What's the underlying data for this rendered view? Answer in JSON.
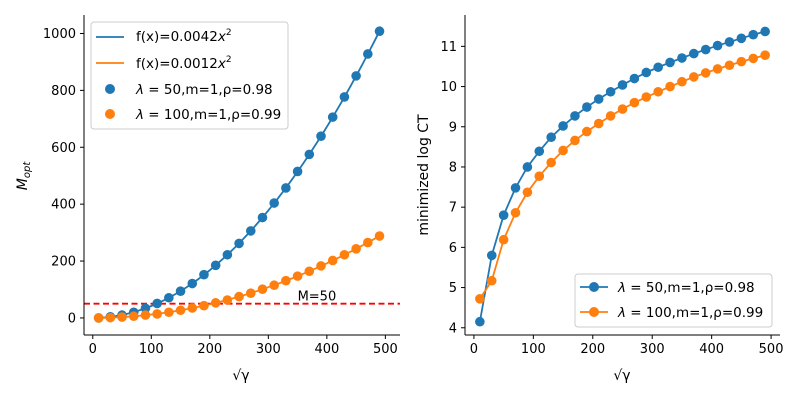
{
  "chart_data": [
    {
      "type": "scatter",
      "xlabel": "√γ",
      "ylabel": "M_opt",
      "xlim": [
        -15,
        525
      ],
      "ylim": [
        -60,
        1065
      ],
      "xticks": [
        0,
        100,
        200,
        300,
        400,
        500
      ],
      "yticks": [
        0,
        200,
        400,
        600,
        800,
        1000
      ],
      "x": [
        10,
        30,
        50,
        70,
        90,
        110,
        130,
        150,
        170,
        190,
        210,
        230,
        250,
        270,
        290,
        310,
        330,
        350,
        370,
        390,
        410,
        430,
        450,
        470,
        490
      ],
      "fits": [
        {
          "name": "f(x)=0.0042x²",
          "label_main": "f(x)=0.0042",
          "label_var": "x",
          "label_exp": "2",
          "coef": 0.0042,
          "color": "#1f77b4"
        },
        {
          "name": "f(x)=0.0012x²",
          "label_main": "f(x)=0.0012",
          "label_var": "x",
          "label_exp": "2",
          "coef": 0.0012,
          "color": "#ff7f0e"
        }
      ],
      "series": [
        {
          "name": "λ=50,m=1,ρ=0.98",
          "label_sym": "λ",
          "label_rest": " = 50,m=1,ρ=0.98",
          "color": "#1f77b4",
          "values": [
            0,
            4,
            10,
            20,
            34,
            51,
            71,
            94,
            121,
            152,
            185,
            222,
            262,
            306,
            353,
            404,
            457,
            515,
            575,
            639,
            706,
            777,
            851,
            928,
            1008
          ]
        },
        {
          "name": "λ=100,m=1,ρ=0.99",
          "label_sym": "λ",
          "label_rest": " = 100,m=1,ρ=0.99",
          "color": "#ff7f0e",
          "values": [
            0,
            1,
            3,
            6,
            10,
            14,
            20,
            27,
            35,
            43,
            53,
            63,
            75,
            87,
            101,
            115,
            131,
            147,
            164,
            183,
            202,
            222,
            243,
            265,
            288
          ]
        },
        {
          "name": "M=50",
          "type": "hline",
          "value": 50,
          "color": "#ff0000"
        }
      ],
      "annotations": [
        {
          "text": "M=50",
          "x": 350,
          "y": 62
        }
      ],
      "legend_position": "upper-left"
    },
    {
      "type": "line",
      "xlabel": "√γ",
      "ylabel": "minimized log CT",
      "xlim": [
        -15,
        515
      ],
      "ylim": [
        3.82,
        11.78
      ],
      "xticks": [
        0,
        100,
        200,
        300,
        400,
        500
      ],
      "yticks": [
        4,
        5,
        6,
        7,
        8,
        9,
        10,
        11
      ],
      "x": [
        10,
        30,
        50,
        70,
        90,
        110,
        130,
        150,
        170,
        190,
        210,
        230,
        250,
        270,
        290,
        310,
        330,
        350,
        370,
        390,
        410,
        430,
        450,
        470,
        490
      ],
      "series": [
        {
          "name": "λ=50,m=1,ρ=0.98",
          "label_sym": "λ",
          "label_rest": " = 50,m=1,ρ=0.98",
          "color": "#1f77b4",
          "values": [
            4.15,
            5.8,
            6.8,
            7.48,
            8.0,
            8.39,
            8.74,
            9.02,
            9.27,
            9.49,
            9.69,
            9.87,
            10.04,
            10.2,
            10.35,
            10.48,
            10.6,
            10.71,
            10.82,
            10.92,
            11.02,
            11.11,
            11.2,
            11.29,
            11.37
          ]
        },
        {
          "name": "λ=100,m=1,ρ=0.99",
          "label_sym": "λ",
          "label_rest": " = 100,m=1,ρ=0.99",
          "color": "#ff7f0e",
          "values": [
            4.72,
            5.17,
            6.19,
            6.86,
            7.37,
            7.77,
            8.11,
            8.41,
            8.66,
            8.88,
            9.08,
            9.27,
            9.44,
            9.6,
            9.74,
            9.87,
            10.0,
            10.12,
            10.24,
            10.34,
            10.44,
            10.53,
            10.62,
            10.7,
            10.78
          ]
        }
      ],
      "legend_position": "lower-right"
    }
  ]
}
